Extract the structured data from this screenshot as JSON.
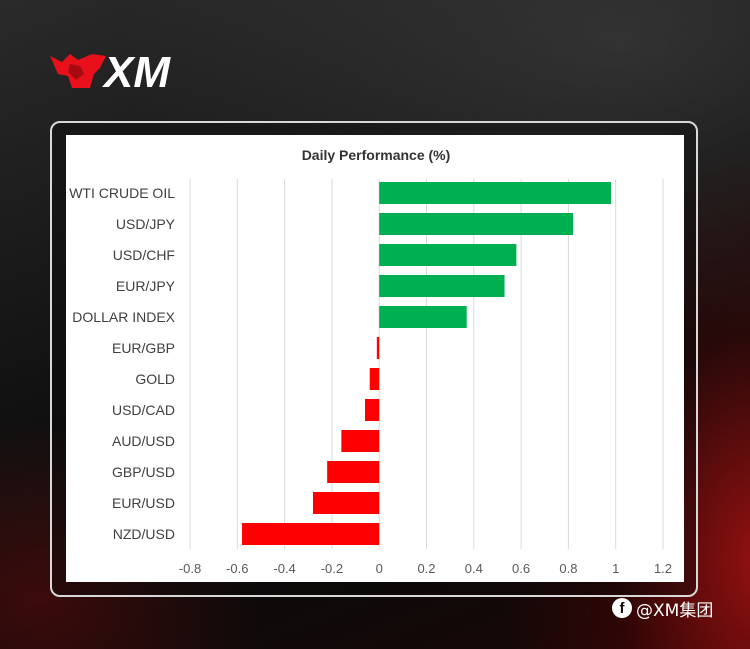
{
  "brand": {
    "logo_text": "XM",
    "accent_color": "#e8101a"
  },
  "watermark": {
    "text": "@XM集团",
    "icon": "facebook-icon"
  },
  "chart_data": {
    "type": "bar",
    "orientation": "horizontal",
    "title": "Daily Performance (%)",
    "categories": [
      "WTI CRUDE OIL",
      "USD/JPY",
      "USD/CHF",
      "EUR/JPY",
      "DOLLAR INDEX",
      "EUR/GBP",
      "GOLD",
      "USD/CAD",
      "AUD/USD",
      "GBP/USD",
      "EUR/USD",
      "NZD/USD"
    ],
    "values": [
      0.98,
      0.82,
      0.58,
      0.53,
      0.37,
      -0.01,
      -0.04,
      -0.06,
      -0.16,
      -0.22,
      -0.28,
      -0.58
    ],
    "xlim": [
      -0.8,
      1.2
    ],
    "xticks": [
      "-0.8",
      "-0.6",
      "-0.4",
      "-0.2",
      "0",
      "0.2",
      "0.4",
      "0.6",
      "0.8",
      "1",
      "1.2"
    ],
    "xtick_values": [
      -0.8,
      -0.6,
      -0.4,
      -0.2,
      0,
      0.2,
      0.4,
      0.6,
      0.8,
      1,
      1.2
    ],
    "grid": "vertical",
    "positive_color": "#00b050",
    "negative_color": "#ff0000",
    "xlabel": "",
    "ylabel": ""
  }
}
